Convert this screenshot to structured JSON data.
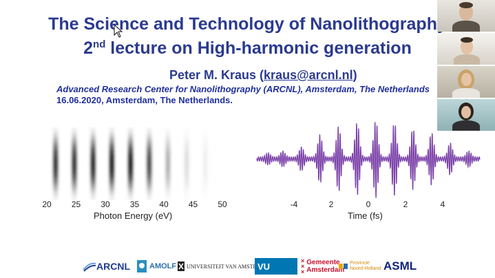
{
  "slide": {
    "title_line1": "The Science and Technology of Nanolithography",
    "title_line2_prefix": "2",
    "title_line2_sup": "nd",
    "title_line2_rest": " lecture on High-harmonic generation",
    "author_name": "Peter M. Kraus (",
    "author_email": "kraus@arcnl.nl",
    "author_close": ")",
    "affiliation": "Advanced Research Center for Nanolithography (ARCNL), Amsterdam, The Netherlands",
    "date": "16.06.2020, Amsterdam, The Netherlands."
  },
  "figures": {
    "spectrum": {
      "x_ticks": [
        "20",
        "25",
        "30",
        "35",
        "40",
        "45",
        "50"
      ],
      "x_label": "Photon Energy (eV)"
    },
    "pulse": {
      "x_ticks": [
        "-4",
        "2",
        "0",
        "2",
        "4"
      ],
      "x_label": "Time (fs)",
      "color": "#7a3fa8"
    }
  },
  "chart_data": [
    {
      "type": "heatmap",
      "title": "",
      "xlabel": "Photon Energy (eV)",
      "xlim": [
        20,
        50
      ],
      "x_ticks": [
        20,
        25,
        30,
        35,
        40,
        45,
        50
      ],
      "harmonic_peaks_eV": [
        21.5,
        24.7,
        27.9,
        31.1,
        34.3,
        37.5,
        40.7,
        43.9,
        47.1
      ],
      "relative_intensity": [
        0.9,
        0.9,
        0.95,
        1.0,
        1.0,
        0.8,
        0.35,
        0.15,
        0.07
      ]
    },
    {
      "type": "line",
      "title": "",
      "xlabel": "Time (fs)",
      "xlim": [
        -6,
        6
      ],
      "x_ticks": [
        "-4",
        "2",
        "0",
        "2",
        "4"
      ],
      "burst_centers_fs": [
        -5.4,
        -4.6,
        -3.6,
        -2.6,
        -1.6,
        -0.6,
        0.4,
        1.4,
        2.4,
        3.4,
        4.4,
        5.4
      ],
      "relative_burst_amplitude": [
        0.1,
        0.15,
        0.25,
        0.55,
        0.75,
        0.85,
        0.9,
        0.85,
        0.7,
        0.6,
        0.35,
        0.15
      ]
    }
  ],
  "logos": {
    "arcnl": "ARCNL",
    "amolf": "AMOLF",
    "uva": "UNIVERSITEIT VAN AMSTERDAM",
    "vu": "VU",
    "gemeente_line1": "Gemeente",
    "gemeente_line2": "Amsterdam",
    "provincie_line1": "Provincie",
    "provincie_line2": "Noord-Holland",
    "asml": "ASML"
  },
  "colors": {
    "title": "#2b3a8f",
    "affiliation": "#1f2f9f",
    "pulse": "#7a3fa8"
  }
}
